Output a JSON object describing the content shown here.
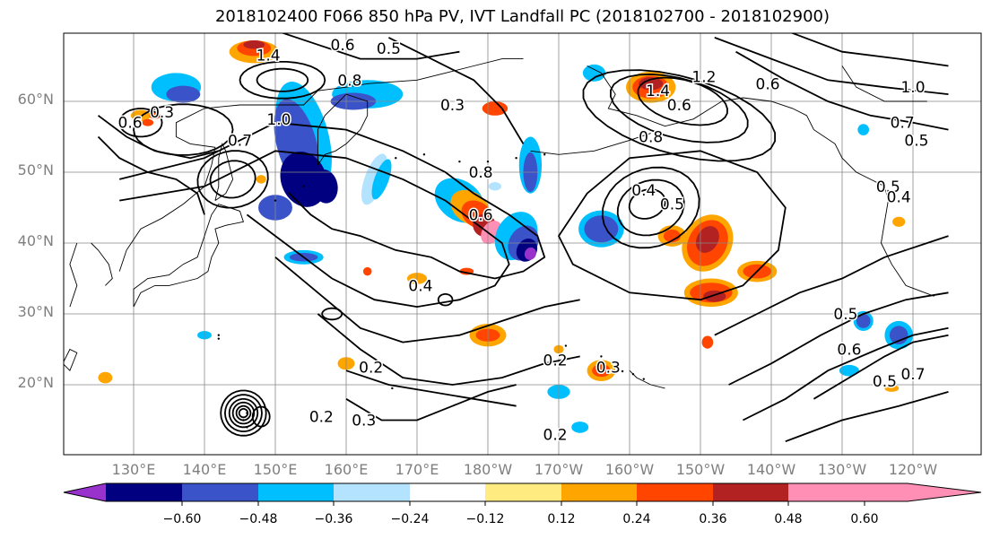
{
  "title": "2018102400 F066 850 hPa PV, IVT Landfall PC (2018102700 - 2018102900)",
  "map": {
    "lat_labels": [
      "60°N",
      "50°N",
      "40°N",
      "30°N",
      "20°N"
    ],
    "lon_labels": [
      "130°E",
      "140°E",
      "150°E",
      "160°E",
      "170°E",
      "180°W",
      "170°W",
      "160°W",
      "150°W",
      "140°W",
      "130°W",
      "120°W"
    ],
    "contour_labels": [
      {
        "text": "0.6",
        "lon": 159.5,
        "lat": 68.0
      },
      {
        "text": "0.5",
        "lon": 166.0,
        "lat": 67.5
      },
      {
        "text": "1.4",
        "lon": 149.0,
        "lat": 66.5
      },
      {
        "text": "0.8",
        "lon": 160.5,
        "lat": 63.0
      },
      {
        "text": "0.3",
        "lon": 175.0,
        "lat": 59.5
      },
      {
        "text": "1.0",
        "lon": 150.5,
        "lat": 57.5
      },
      {
        "text": "0.7",
        "lon": 145.0,
        "lat": 54.5
      },
      {
        "text": "0.6",
        "lon": 129.5,
        "lat": 57.0
      },
      {
        "text": "0.3",
        "lon": 134.0,
        "lat": 58.5
      },
      {
        "text": "0.8",
        "lon": 179.0,
        "lat": 50.0
      },
      {
        "text": "0.6",
        "lon": 179.0,
        "lat": 44.0
      },
      {
        "text": "0.4",
        "lon": 170.5,
        "lat": 34.0
      },
      {
        "text": "1.4",
        "lon": 204.0,
        "lat": 61.5
      },
      {
        "text": "1.2",
        "lon": 210.5,
        "lat": 63.5
      },
      {
        "text": "0.6",
        "lon": 207.0,
        "lat": 59.5
      },
      {
        "text": "0.8",
        "lon": 203.0,
        "lat": 55.0
      },
      {
        "text": "0.6",
        "lon": 219.5,
        "lat": 62.5
      },
      {
        "text": "0.4",
        "lon": 202.0,
        "lat": 47.5
      },
      {
        "text": "0.5",
        "lon": 206.0,
        "lat": 45.5
      },
      {
        "text": "1.0",
        "lon": 240.0,
        "lat": 62.0
      },
      {
        "text": "0.7",
        "lon": 238.5,
        "lat": 57.0
      },
      {
        "text": "0.5",
        "lon": 240.5,
        "lat": 54.5
      },
      {
        "text": "0.5",
        "lon": 236.5,
        "lat": 48.0
      },
      {
        "text": "0.4",
        "lon": 238.0,
        "lat": 46.5
      },
      {
        "text": "0.3",
        "lon": 197.0,
        "lat": 22.5
      },
      {
        "text": "0.2",
        "lon": 189.5,
        "lat": 23.5
      },
      {
        "text": "0.2",
        "lon": 189.5,
        "lat": 13.0
      },
      {
        "text": "0.3",
        "lon": 162.5,
        "lat": 15.0
      },
      {
        "text": "0.2",
        "lon": 156.5,
        "lat": 15.5
      },
      {
        "text": "0.2",
        "lon": 163.5,
        "lat": 22.5
      },
      {
        "text": "0.5",
        "lon": 230.5,
        "lat": 30.0
      },
      {
        "text": "0.6",
        "lon": 231.0,
        "lat": 25.0
      },
      {
        "text": "0.5",
        "lon": 236.0,
        "lat": 20.5
      },
      {
        "text": "0.7",
        "lon": 240.0,
        "lat": 21.5
      }
    ]
  },
  "colorbar": {
    "colors": [
      "#9932cc",
      "#000080",
      "#3a53c9",
      "#00bfff",
      "#b3e3ff",
      "#ffffff",
      "#ffeb80",
      "#ffa500",
      "#ff4500",
      "#b22222",
      "#ff8fb5"
    ],
    "tick_labels": [
      "−0.60",
      "−0.48",
      "−0.36",
      "−0.24",
      "−0.12",
      "0.12",
      "0.24",
      "0.36",
      "0.48",
      "0.60"
    ]
  }
}
